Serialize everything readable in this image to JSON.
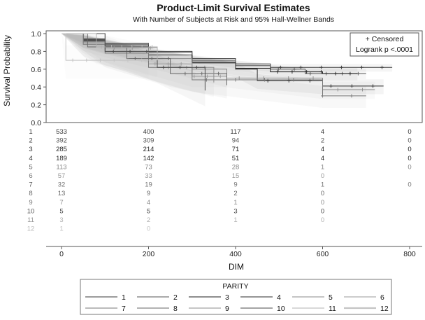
{
  "chart_data": {
    "type": "line",
    "title": "Product-Limit Survival Estimates",
    "subtitle": "With Number of Subjects at Risk and 95% Hall-Wellner Bands",
    "xlabel": "DIM",
    "ylabel": "Survival Probability",
    "xlim": [
      0,
      800
    ],
    "ylim": [
      0.0,
      1.0
    ],
    "x_ticks": [
      0,
      200,
      400,
      600,
      800
    ],
    "y_ticks": [
      0.0,
      0.2,
      0.4,
      0.6,
      0.8,
      1.0
    ],
    "y_tick_labels": [
      "0.0",
      "0.2",
      "0.4",
      "0.6",
      "0.8",
      "1.0"
    ],
    "inset": {
      "censored_label": "+ Censored",
      "test_label": "Logrank p <.0001"
    },
    "legend": {
      "title": "PARITY",
      "placement": "bottom"
    },
    "series": [
      {
        "name": "1",
        "color": "#3a3a3a",
        "x": [
          0,
          50,
          100,
          200,
          300,
          400,
          480,
          560,
          760
        ],
        "y": [
          1.0,
          0.94,
          0.89,
          0.8,
          0.72,
          0.66,
          0.62,
          0.62,
          0.62
        ]
      },
      {
        "name": "2",
        "color": "#555555",
        "x": [
          0,
          50,
          100,
          200,
          300,
          400,
          480,
          560,
          700
        ],
        "y": [
          1.0,
          0.93,
          0.88,
          0.79,
          0.7,
          0.64,
          0.6,
          0.55,
          0.55
        ]
      },
      {
        "name": "3",
        "color": "#1e1e1e",
        "x": [
          0,
          50,
          100,
          200,
          300,
          400,
          480,
          600,
          680
        ],
        "y": [
          1.0,
          0.92,
          0.86,
          0.76,
          0.68,
          0.61,
          0.57,
          0.55,
          0.55
        ]
      },
      {
        "name": "4",
        "color": "#2b2b2b",
        "x": [
          0,
          50,
          100,
          200,
          300,
          400,
          450,
          600,
          740
        ],
        "y": [
          1.0,
          0.93,
          0.86,
          0.76,
          0.67,
          0.6,
          0.47,
          0.41,
          0.41
        ]
      },
      {
        "name": "5",
        "color": "#888888",
        "x": [
          0,
          50,
          100,
          200,
          300,
          380,
          600,
          720
        ],
        "y": [
          1.0,
          0.91,
          0.84,
          0.72,
          0.6,
          0.5,
          0.37,
          0.37
        ]
      },
      {
        "name": "6",
        "color": "#9a9a9a",
        "x": [
          0,
          50,
          100,
          200,
          300,
          380
        ],
        "y": [
          1.0,
          0.9,
          0.8,
          0.66,
          0.52,
          0.52
        ]
      },
      {
        "name": "7",
        "color": "#777777",
        "x": [
          0,
          50,
          100,
          200,
          300,
          600,
          700
        ],
        "y": [
          1.0,
          0.88,
          0.78,
          0.62,
          0.48,
          0.3,
          0.3
        ]
      },
      {
        "name": "8",
        "color": "#666666",
        "x": [
          0,
          60,
          150,
          250,
          380
        ],
        "y": [
          1.0,
          0.85,
          0.72,
          0.55,
          0.42
        ]
      },
      {
        "name": "9",
        "color": "#8c8c8c",
        "x": [
          0,
          100,
          220,
          350
        ],
        "y": [
          1.0,
          0.84,
          0.62,
          0.45
        ]
      },
      {
        "name": "10",
        "color": "#4a4a4a",
        "x": [
          0,
          100,
          220,
          330
        ],
        "y": [
          1.0,
          0.8,
          0.62,
          0.36
        ]
      },
      {
        "name": "11",
        "color": "#b0b0b0",
        "x": [
          0,
          80,
          220
        ],
        "y": [
          1.0,
          0.85,
          0.7
        ]
      },
      {
        "name": "12",
        "color": "#c4c4c4",
        "x": [
          0,
          10,
          200
        ],
        "y": [
          1.0,
          0.7,
          0.7
        ]
      }
    ],
    "at_risk": {
      "times": [
        0,
        200,
        400,
        600,
        800
      ],
      "rows": [
        {
          "label": "1",
          "values": [
            "533",
            "400",
            "117",
            "4",
            "0"
          ]
        },
        {
          "label": "2",
          "values": [
            "392",
            "309",
            "94",
            "2",
            "0"
          ]
        },
        {
          "label": "3",
          "values": [
            "285",
            "214",
            "71",
            "4",
            "0"
          ]
        },
        {
          "label": "4",
          "values": [
            "189",
            "142",
            "51",
            "4",
            "0"
          ]
        },
        {
          "label": "5",
          "values": [
            "113",
            "73",
            "28",
            "1",
            "0"
          ]
        },
        {
          "label": "6",
          "values": [
            "57",
            "33",
            "15",
            "0",
            ""
          ]
        },
        {
          "label": "7",
          "values": [
            "32",
            "19",
            "9",
            "1",
            "0"
          ]
        },
        {
          "label": "8",
          "values": [
            "13",
            "9",
            "2",
            "0",
            ""
          ]
        },
        {
          "label": "9",
          "values": [
            "7",
            "4",
            "1",
            "0",
            ""
          ]
        },
        {
          "label": "10",
          "values": [
            "5",
            "5",
            "3",
            "0",
            ""
          ]
        },
        {
          "label": "11",
          "values": [
            "3",
            "2",
            "1",
            "0",
            ""
          ]
        },
        {
          "label": "12",
          "values": [
            "1",
            "0",
            "",
            "",
            ""
          ]
        }
      ]
    }
  }
}
